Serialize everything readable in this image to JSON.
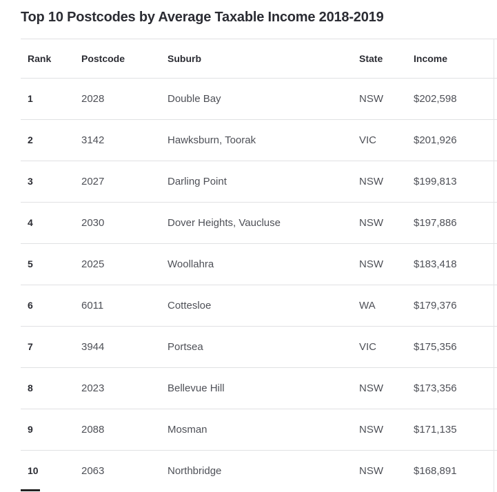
{
  "title": "Top 10 Postcodes by Average Taxable Income 2018-2019",
  "chart_data": {
    "type": "table",
    "title": "Top 10 Postcodes by Average Taxable Income 2018-2019",
    "columns": [
      "Rank",
      "Postcode",
      "Suburb",
      "State",
      "Income"
    ],
    "column_keys": [
      "rank",
      "postcode",
      "suburb",
      "state",
      "income"
    ],
    "rows": [
      [
        "1",
        "2028",
        "Double Bay",
        "NSW",
        "$202,598"
      ],
      [
        "2",
        "3142",
        "Hawksburn, Toorak",
        "VIC",
        "$201,926"
      ],
      [
        "3",
        "2027",
        "Darling Point",
        "NSW",
        "$199,813"
      ],
      [
        "4",
        "2030",
        "Dover Heights, Vaucluse",
        "NSW",
        "$197,886"
      ],
      [
        "5",
        "2025",
        "Woollahra",
        "NSW",
        "$183,418"
      ],
      [
        "6",
        "6011",
        "Cottesloe",
        "WA",
        "$179,376"
      ],
      [
        "7",
        "3944",
        "Portsea",
        "VIC",
        "$175,356"
      ],
      [
        "8",
        "2023",
        "Bellevue Hill",
        "NSW",
        "$173,356"
      ],
      [
        "9",
        "2088",
        "Mosman",
        "NSW",
        "$171,135"
      ],
      [
        "10",
        "2063",
        "Northbridge",
        "NSW",
        "$168,891"
      ]
    ],
    "income_values": [
      202598,
      201926,
      199813,
      197886,
      183418,
      179376,
      175356,
      173356,
      171135,
      168891
    ]
  },
  "colors": {
    "background": "#ffffff",
    "heading_text": "#2b2c33",
    "body_text": "#4e5057",
    "divider": "#e0e1e3"
  }
}
